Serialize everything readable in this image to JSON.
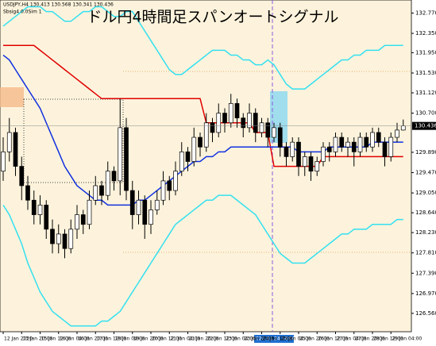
{
  "chart_data": {
    "type": "candlestick",
    "title": "ドル円4時間足スパンオートシグナル",
    "header": "USDJPY,H4 130.413 130.568 130.341 130.436",
    "subheader": "Sbsig4 0.0Sim 1",
    "crosshair_label": "2020.01.24 16:00",
    "current_price": {
      "value": 130.436,
      "label": "130.436"
    },
    "ylim": [
      126.18,
      133.04
    ],
    "yticks": [
      {
        "value": 132.77,
        "label": "132.770"
      },
      {
        "value": 132.35,
        "label": "132.350"
      },
      {
        "value": 131.95,
        "label": "131.950"
      },
      {
        "value": 131.53,
        "label": "131.530"
      },
      {
        "value": 131.12,
        "label": "131.120"
      },
      {
        "value": 130.7,
        "label": "130.700"
      },
      {
        "value": 129.89,
        "label": "129.890"
      },
      {
        "value": 129.47,
        "label": "129.470"
      },
      {
        "value": 129.05,
        "label": "129.050"
      },
      {
        "value": 128.64,
        "label": "128.640"
      },
      {
        "value": 128.23,
        "label": "128.230"
      },
      {
        "value": 127.81,
        "label": "127.810"
      },
      {
        "value": 127.39,
        "label": "127.390"
      },
      {
        "value": 126.97,
        "label": "126.970"
      },
      {
        "value": 126.56,
        "label": "126.560"
      }
    ],
    "categories": [
      "12 Jan 2020",
      null,
      null,
      "13 Jan 20:00",
      null,
      null,
      "15 Jan 12:00",
      null,
      null,
      "16 Jan 04:00",
      null,
      null,
      "16 Jan 20:00",
      null,
      null,
      "17 Jan 12:00",
      null,
      null,
      "18 Jan 04:00",
      null,
      null,
      "19 Jan 20:00",
      null,
      null,
      "20 Jan 12:00",
      null,
      null,
      "21 Jan 04:00",
      null,
      null,
      "21 Jan 20:00",
      null,
      null,
      "22 Jan 12:00",
      null,
      null,
      "23 Jan 04:00",
      null,
      null,
      "23 Jan 20:00",
      null,
      null,
      "24 Jan 12:00",
      null,
      null,
      "25 Jan 04:00",
      null,
      null,
      "25 Jan 20:00",
      null,
      null,
      "26 Jan 12:00",
      null,
      null,
      "27 Jan 04:00",
      null,
      null,
      "27 Jan 20:00",
      null,
      null,
      "28 Jan 12:00",
      null,
      null,
      "29 Jan 04:00",
      null,
      null
    ],
    "open": [
      129.5,
      129.9,
      130.3,
      129.6,
      129.2,
      128.9,
      128.6,
      128.8,
      128.3,
      128.0,
      128.2,
      127.9,
      128.3,
      128.6,
      128.4,
      128.9,
      129.2,
      129.0,
      129.5,
      129.3,
      130.4,
      129.1,
      128.6,
      128.9,
      128.4,
      128.7,
      128.9,
      129.3,
      129.1,
      129.5,
      129.9,
      129.7,
      130.2,
      130.0,
      130.5,
      130.3,
      130.7,
      130.5,
      130.9,
      130.6,
      130.4,
      130.7,
      130.3,
      130.5,
      130.2,
      130.4,
      130.0,
      129.8,
      130.1,
      129.6,
      129.8,
      129.5,
      129.7,
      130.0,
      129.9,
      130.2,
      130.0,
      130.1,
      129.9,
      130.2,
      130.0,
      130.3,
      130.1,
      129.8,
      130.2,
      130.35
    ],
    "high": [
      130.2,
      130.6,
      130.4,
      129.8,
      129.4,
      129.1,
      129.0,
      128.9,
      128.5,
      128.4,
      128.3,
      128.5,
      128.8,
      128.7,
      129.1,
      129.4,
      129.3,
      129.7,
      129.6,
      131.0,
      130.6,
      129.3,
      129.1,
      129.0,
      128.9,
      129.1,
      129.5,
      129.4,
      129.7,
      130.1,
      130.0,
      130.4,
      130.3,
      130.7,
      130.6,
      130.9,
      130.8,
      131.1,
      131.0,
      130.7,
      130.9,
      130.8,
      130.6,
      130.6,
      130.5,
      130.5,
      130.1,
      130.2,
      130.2,
      129.9,
      129.9,
      129.8,
      130.1,
      130.1,
      130.3,
      130.3,
      130.2,
      130.2,
      130.3,
      130.3,
      130.4,
      130.4,
      130.2,
      130.3,
      130.5,
      130.568
    ],
    "low": [
      129.3,
      129.7,
      129.4,
      128.9,
      128.7,
      128.4,
      128.4,
      128.1,
      127.8,
      127.8,
      127.7,
      127.8,
      128.1,
      128.2,
      128.3,
      128.8,
      128.8,
      128.9,
      129.1,
      129.0,
      128.9,
      128.3,
      128.4,
      128.1,
      128.2,
      128.6,
      128.8,
      128.9,
      129.0,
      129.4,
      129.5,
      129.6,
      129.8,
      129.9,
      130.1,
      130.2,
      130.3,
      130.4,
      130.4,
      130.2,
      130.3,
      130.1,
      130.2,
      130.0,
      130.1,
      129.8,
      129.6,
      129.7,
      129.4,
      129.4,
      129.3,
      129.4,
      129.6,
      129.7,
      129.8,
      129.9,
      129.8,
      129.6,
      129.8,
      129.9,
      129.9,
      130.0,
      129.6,
      129.7,
      130.1,
      130.341
    ],
    "close": [
      129.9,
      130.3,
      129.6,
      129.2,
      128.9,
      128.6,
      128.8,
      128.3,
      128.0,
      128.2,
      127.9,
      128.3,
      128.6,
      128.4,
      128.9,
      129.2,
      129.0,
      129.5,
      129.3,
      130.4,
      129.1,
      128.6,
      128.9,
      128.4,
      128.7,
      128.9,
      129.3,
      129.1,
      129.5,
      129.9,
      129.7,
      130.2,
      130.0,
      130.5,
      130.3,
      130.7,
      130.5,
      130.9,
      130.6,
      130.4,
      130.7,
      130.3,
      130.5,
      130.2,
      130.4,
      130.0,
      129.8,
      130.1,
      129.6,
      129.8,
      129.5,
      129.7,
      130.0,
      129.9,
      130.2,
      130.0,
      130.1,
      129.9,
      130.2,
      130.0,
      130.3,
      130.1,
      129.8,
      130.2,
      130.35,
      130.436
    ],
    "overlays": [
      {
        "color": "#33e0f0",
        "values": [
          132.5,
          132.6,
          132.7,
          132.8,
          132.9,
          132.9,
          132.9,
          132.8,
          132.8,
          132.7,
          132.6,
          132.6,
          132.7,
          132.8,
          132.8,
          132.9,
          132.9,
          132.8,
          132.7,
          132.7,
          132.8,
          132.8,
          132.6,
          132.4,
          132.2,
          132.0,
          131.8,
          131.6,
          131.5,
          131.5,
          131.6,
          131.7,
          131.8,
          131.9,
          132.0,
          132.0,
          132.0,
          131.9,
          131.9,
          131.8,
          131.8,
          131.7,
          131.7,
          131.8,
          131.7,
          131.5,
          131.3,
          131.2,
          131.2,
          131.2,
          131.3,
          131.4,
          131.5,
          131.6,
          131.7,
          131.8,
          131.8,
          131.9,
          131.9,
          132.0,
          132.0,
          132.0,
          132.1,
          132.1,
          132.1,
          132.1
        ]
      },
      {
        "color": "#33e0f0",
        "values": [
          128.8,
          128.6,
          128.3,
          128.0,
          127.6,
          127.3,
          127.0,
          126.8,
          126.6,
          126.5,
          126.4,
          126.3,
          126.3,
          126.3,
          126.3,
          126.3,
          126.4,
          126.4,
          126.5,
          126.6,
          126.8,
          127.0,
          127.2,
          127.4,
          127.6,
          127.8,
          128.0,
          128.2,
          128.4,
          128.5,
          128.6,
          128.7,
          128.8,
          128.9,
          128.9,
          129.0,
          129.0,
          129.0,
          128.9,
          128.8,
          128.7,
          128.6,
          128.4,
          128.2,
          128.0,
          127.8,
          127.7,
          127.6,
          127.6,
          127.6,
          127.7,
          127.8,
          127.9,
          128.0,
          128.1,
          128.2,
          128.2,
          128.3,
          128.3,
          128.3,
          128.4,
          128.4,
          128.4,
          128.4,
          128.5,
          128.5
        ]
      },
      {
        "color": "#e00000",
        "values": [
          132.1,
          132.1,
          132.1,
          132.1,
          132.1,
          132.1,
          132.0,
          131.9,
          131.8,
          131.7,
          131.6,
          131.5,
          131.4,
          131.3,
          131.2,
          131.1,
          131.0,
          131.0,
          131.0,
          131.0,
          131.0,
          131.0,
          131.0,
          131.0,
          131.0,
          131.0,
          131.0,
          131.0,
          131.0,
          131.0,
          131.0,
          131.0,
          131.0,
          130.5,
          130.5,
          130.5,
          130.5,
          130.5,
          130.5,
          130.5,
          130.5,
          130.3,
          130.3,
          130.3,
          129.6,
          129.6,
          129.6,
          129.6,
          129.6,
          129.6,
          129.6,
          129.6,
          129.8,
          129.8,
          129.8,
          129.8,
          129.8,
          129.8,
          129.8,
          129.8,
          129.8,
          129.8,
          129.8,
          129.8,
          129.8,
          129.8
        ]
      },
      {
        "color": "#1030e0",
        "values": [
          131.9,
          131.8,
          131.6,
          131.4,
          131.2,
          131.0,
          130.8,
          130.5,
          130.2,
          129.9,
          129.6,
          129.4,
          129.2,
          129.1,
          129.0,
          128.9,
          128.9,
          128.8,
          128.8,
          128.8,
          128.8,
          128.8,
          128.9,
          128.9,
          129.0,
          129.1,
          129.2,
          129.3,
          129.4,
          129.5,
          129.6,
          129.7,
          129.7,
          129.8,
          129.8,
          129.9,
          129.9,
          130.0,
          130.0,
          130.0,
          130.0,
          130.0,
          130.0,
          130.0,
          130.0,
          130.0,
          130.0,
          130.0,
          129.9,
          129.9,
          129.9,
          129.9,
          129.9,
          130.0,
          130.0,
          130.0,
          130.0,
          130.0,
          130.0,
          130.0,
          130.1,
          130.1,
          130.1,
          130.1,
          130.1,
          130.1
        ]
      }
    ]
  }
}
